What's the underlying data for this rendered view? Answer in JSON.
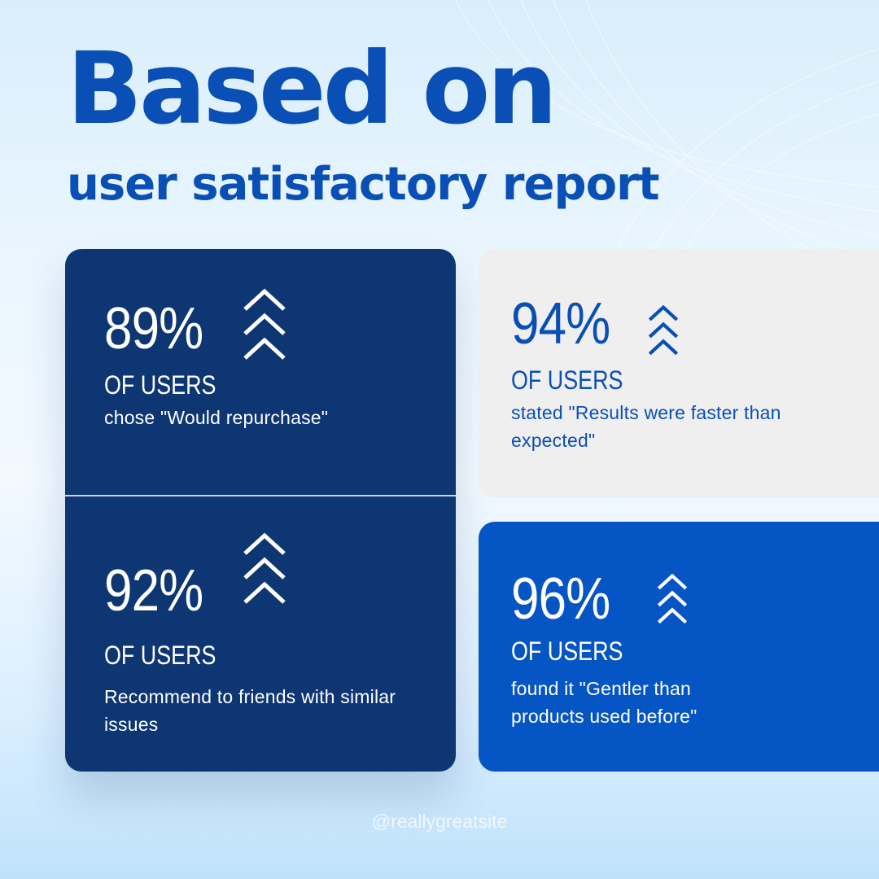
{
  "title": {
    "main": "Based on",
    "sub": "user satisfactory report"
  },
  "stats": [
    {
      "percent": "89%",
      "unit": "OF USERS",
      "description": "chose \"Would repurchase\""
    },
    {
      "percent": "92%",
      "unit": "OF USERS",
      "description": "Recommend to friends with similar issues"
    },
    {
      "percent": "94%",
      "unit": "OF USERS",
      "description": "stated \"Results were faster than expected\""
    },
    {
      "percent": "96%",
      "unit": "OF USERS",
      "description": "found it \"Gentler than products used before\""
    }
  ],
  "icons": {
    "trend": "triple-chevron-up-icon"
  },
  "footer": {
    "handle": "@reallygreatsite"
  },
  "colors": {
    "title": "#0a4fb5",
    "card_dark": "#0d3673",
    "card_light": "#efefef",
    "card_blue": "#0655c4",
    "text_on_dark": "#ffffff"
  }
}
